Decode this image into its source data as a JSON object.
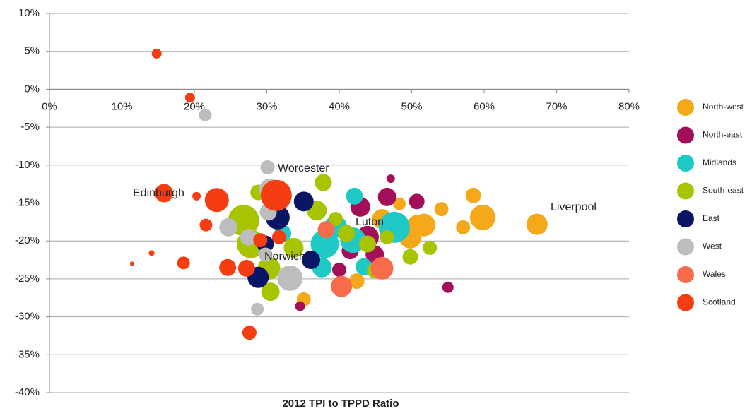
{
  "chart_data": {
    "type": "bubble",
    "x_label": "2012 TPI to TPPD Ratio",
    "xlim": [
      0,
      80
    ],
    "ylim": [
      -40,
      10
    ],
    "xticks": [
      {
        "value": 0,
        "label": "0%"
      },
      {
        "value": 10,
        "label": "10%"
      },
      {
        "value": 20,
        "label": "20%"
      },
      {
        "value": 30,
        "label": "30%"
      },
      {
        "value": 40,
        "label": "40%"
      },
      {
        "value": 50,
        "label": "50%"
      },
      {
        "value": 60,
        "label": "60%"
      },
      {
        "value": 70,
        "label": "70%"
      },
      {
        "value": 80,
        "label": "80%"
      }
    ],
    "yticks": [
      {
        "value": 10,
        "label": "10%"
      },
      {
        "value": 5,
        "label": "5%"
      },
      {
        "value": 0,
        "label": "0%"
      },
      {
        "value": -5,
        "label": "-5%"
      },
      {
        "value": -10,
        "label": "-10%"
      },
      {
        "value": -15,
        "label": "-15%"
      },
      {
        "value": -20,
        "label": "-20%"
      },
      {
        "value": -25,
        "label": "-25%"
      },
      {
        "value": -30,
        "label": "-30%"
      },
      {
        "value": -35,
        "label": "-35%"
      },
      {
        "value": -40,
        "label": "-40%"
      }
    ],
    "grid": true,
    "legend": "right",
    "annotations": [
      "Worcester",
      "Edinburgh",
      "Liverpool",
      "Luton",
      "Norwich"
    ],
    "series": [
      {
        "name": "North-west",
        "color": "#F5A91A",
        "x": [
          67.3,
          59.8,
          58.5,
          57.1,
          54.1,
          51.7,
          49.8,
          48.3,
          45.9,
          42.4,
          35.1,
          50.7
        ],
        "y": [
          -17.8,
          -16.9,
          -14.0,
          -18.2,
          -15.8,
          -17.9,
          -19.5,
          -15.1,
          -17.1,
          -25.3,
          -27.7,
          -17.9
        ],
        "sizes": [
          15,
          18,
          11,
          10,
          10,
          16,
          16,
          9,
          14,
          11,
          10,
          14
        ]
      },
      {
        "name": "North-east",
        "color": "#A3105A",
        "x": [
          46.6,
          50.7,
          47.1,
          55.0,
          42.9,
          43.9,
          44.9,
          40.0,
          34.6,
          41.5
        ],
        "y": [
          -14.2,
          -14.8,
          -11.8,
          -26.1,
          -15.5,
          -19.5,
          -21.8,
          -23.8,
          -28.6,
          -21.3
        ],
        "sizes": [
          13,
          11,
          6,
          8,
          14,
          16,
          13,
          10,
          7,
          12
        ]
      },
      {
        "name": "Midlands",
        "color": "#1FC9C6",
        "x": [
          42.1,
          47.6,
          39.5,
          37.6,
          43.4,
          38.0,
          32.2,
          41.9
        ],
        "y": [
          -14.1,
          -18.2,
          -18.1,
          -23.5,
          -23.4,
          -20.4,
          -19.0,
          -19.9
        ],
        "sizes": [
          12,
          22,
          16,
          14,
          12,
          20,
          12,
          18
        ]
      },
      {
        "name": "South-east",
        "color": "#A8C300",
        "x": [
          37.8,
          28.8,
          26.8,
          27.8,
          30.3,
          30.5,
          36.9,
          33.7,
          36.1,
          43.9,
          44.9,
          49.8,
          52.5,
          46.6,
          41.0,
          39.5
        ],
        "y": [
          -12.3,
          -13.6,
          -17.3,
          -20.4,
          -23.6,
          -26.7,
          -16.0,
          -20.9,
          -22.5,
          -20.4,
          -23.9,
          -22.1,
          -20.9,
          -19.5,
          -19.0,
          -17.1
        ],
        "sizes": [
          12,
          11,
          22,
          20,
          16,
          13,
          14,
          14,
          12,
          12,
          11,
          11,
          10,
          10,
          12,
          10
        ]
      },
      {
        "name": "East",
        "color": "#0B1565",
        "x": [
          35.1,
          31.5,
          28.8,
          36.1,
          29.8
        ],
        "y": [
          -14.8,
          -16.9,
          -24.8,
          -22.5,
          -20.4
        ],
        "sizes": [
          14,
          17,
          15,
          13,
          12
        ]
      },
      {
        "name": "West",
        "color": "#BDBDBD",
        "x": [
          21.5,
          30.1,
          30.4,
          24.7,
          27.5,
          33.2,
          28.7,
          29.8,
          30.2
        ],
        "y": [
          -3.4,
          -10.3,
          -13.2,
          -18.2,
          -19.5,
          -24.9,
          -29.0,
          -21.8,
          -16.2
        ],
        "sizes": [
          9,
          10,
          15,
          13,
          12,
          18,
          9,
          10,
          12
        ]
      },
      {
        "name": "Wales",
        "color": "#F76A4A",
        "x": [
          40.3,
          38.2,
          45.9
        ],
        "y": [
          -26.0,
          -18.5,
          -23.6
        ],
        "sizes": [
          15,
          12,
          16
        ]
      },
      {
        "name": "Scotland",
        "color": "#F43D10",
        "x": [
          14.8,
          19.4,
          15.8,
          20.3,
          23.1,
          31.3,
          21.6,
          14.1,
          11.4,
          18.5,
          24.6,
          27.2,
          27.6,
          29.1,
          31.7
        ],
        "y": [
          4.7,
          -1.1,
          -13.7,
          -14.1,
          -14.6,
          -14.0,
          -17.9,
          -21.6,
          -23.0,
          -22.9,
          -23.5,
          -23.6,
          -32.1,
          -19.9,
          -19.5
        ],
        "sizes": [
          7,
          7,
          13,
          6,
          17,
          22,
          9,
          4,
          3,
          9,
          12,
          12,
          10,
          10,
          10
        ]
      }
    ]
  }
}
